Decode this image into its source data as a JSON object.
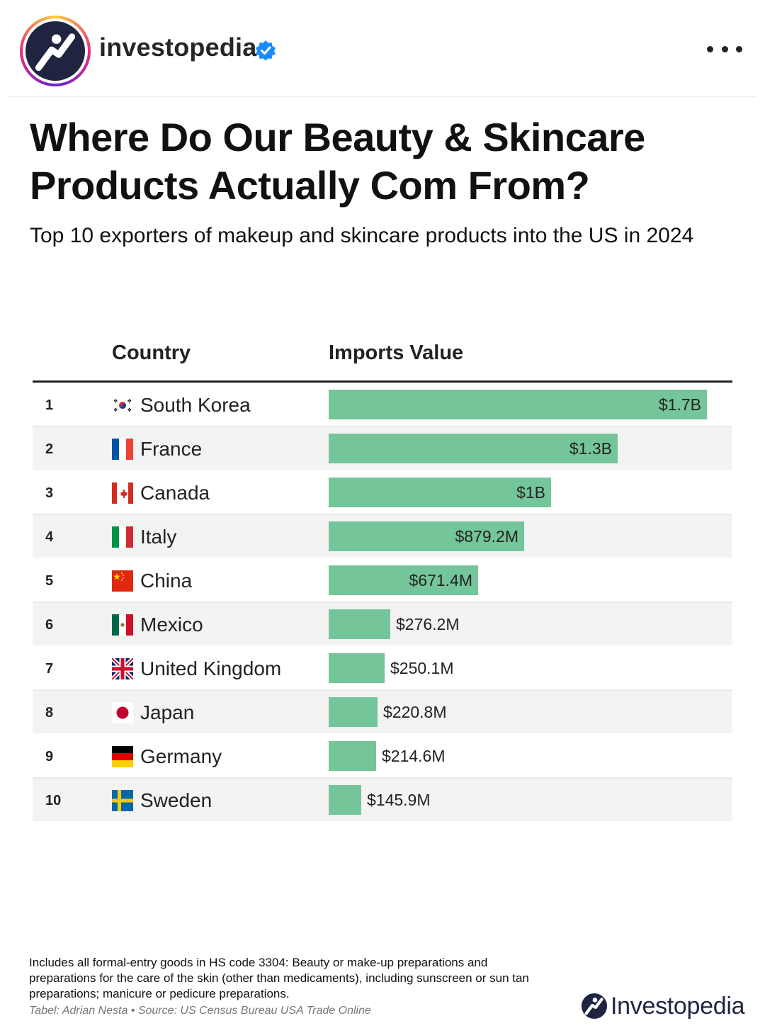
{
  "post": {
    "username": "investopedia",
    "avatar_icon": "investopedia-logo-icon",
    "verified_icon": "verified-badge-icon",
    "more_icon": "more-options-icon"
  },
  "infographic": {
    "title": "Where Do Our Beauty & Skincare Products Actually Com From?",
    "subtitle": "Top 10 exporters of makeup and skincare products into the US in 2024",
    "col_country": "Country",
    "col_value": "Imports Value",
    "accent_color": "#74c69a",
    "note": "Includes all formal-entry goods in HS code 3304: Beauty or make-up preparations and preparations for the care of the skin (other than medicaments), including sunscreen or sun tan preparations; manicure or pedicure preparations.",
    "source": "Tabel: Adrian Nesta • Source: US Census Bureau USA Trade Online",
    "logo_text": "Investopedia"
  },
  "chart_data": {
    "type": "bar",
    "title": "Where Do Our Beauty & Skincare Products Actually Com From?",
    "subtitle": "Top 10 exporters of makeup and skincare products into the US in 2024",
    "ranks": [
      "1",
      "2",
      "3",
      "4",
      "5",
      "6",
      "7",
      "8",
      "9",
      "10"
    ],
    "categories": [
      "South Korea",
      "France",
      "Canada",
      "Italy",
      "China",
      "Mexico",
      "United Kingdom",
      "Japan",
      "Germany",
      "Sweden"
    ],
    "flags": [
      "south-korea-flag-icon",
      "france-flag-icon",
      "canada-flag-icon",
      "italy-flag-icon",
      "china-flag-icon",
      "mexico-flag-icon",
      "united-kingdom-flag-icon",
      "japan-flag-icon",
      "germany-flag-icon",
      "sweden-flag-icon"
    ],
    "values": [
      1700,
      1300,
      1000,
      879.2,
      671.4,
      276.2,
      250.1,
      220.8,
      214.6,
      145.9
    ],
    "value_unit": "million USD",
    "value_labels": [
      "$1.7B",
      "$1.3B",
      "$1B",
      "$879.2M",
      "$671.4M",
      "$276.2M",
      "$250.1M",
      "$220.8M",
      "$214.6M",
      "$145.9M"
    ],
    "xlabel": "Imports Value",
    "ylabel": "Country",
    "xlim": [
      0,
      1700
    ]
  }
}
